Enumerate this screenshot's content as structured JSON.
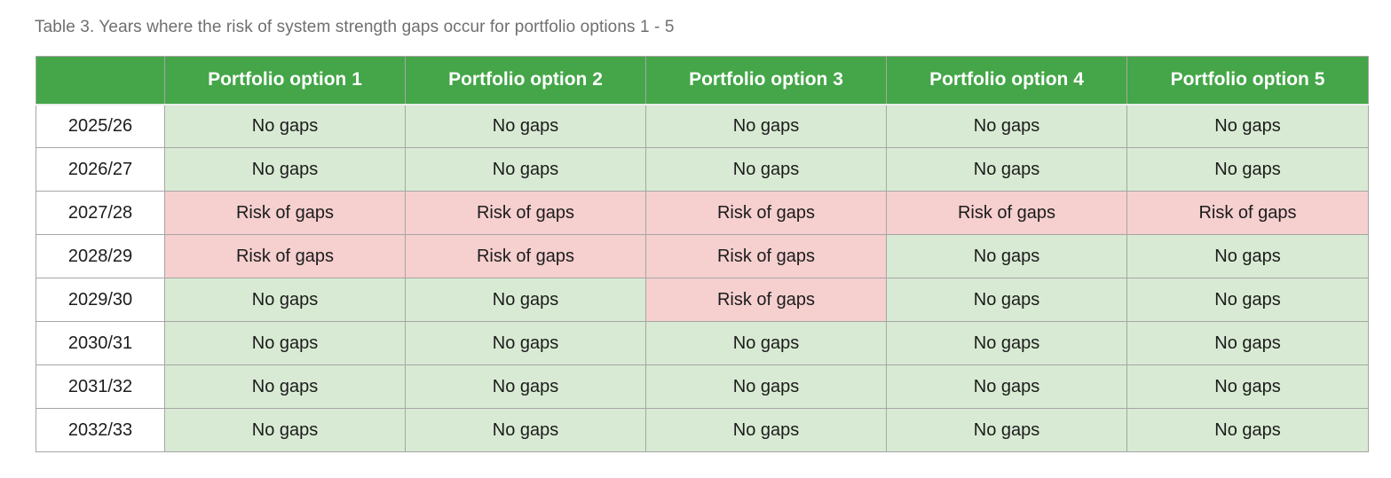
{
  "caption": "Table 3. Years where the risk of system strength gaps occur for portfolio options 1 - 5",
  "table": {
    "header": [
      "",
      "Portfolio option 1",
      "Portfolio option 2",
      "Portfolio option 3",
      "Portfolio option 4",
      "Portfolio option 5"
    ],
    "rows": [
      {
        "year": "2025/26",
        "cells": [
          "No gaps",
          "No gaps",
          "No gaps",
          "No gaps",
          "No gaps"
        ]
      },
      {
        "year": "2026/27",
        "cells": [
          "No gaps",
          "No gaps",
          "No gaps",
          "No gaps",
          "No gaps"
        ]
      },
      {
        "year": "2027/28",
        "cells": [
          "Risk of gaps",
          "Risk of gaps",
          "Risk of gaps",
          "Risk of gaps",
          "Risk of gaps"
        ]
      },
      {
        "year": "2028/29",
        "cells": [
          "Risk of gaps",
          "Risk of gaps",
          "Risk of gaps",
          "No gaps",
          "No gaps"
        ]
      },
      {
        "year": "2029/30",
        "cells": [
          "No gaps",
          "No gaps",
          "Risk of gaps",
          "No gaps",
          "No gaps"
        ]
      },
      {
        "year": "2030/31",
        "cells": [
          "No gaps",
          "No gaps",
          "No gaps",
          "No gaps",
          "No gaps"
        ]
      },
      {
        "year": "2031/32",
        "cells": [
          "No gaps",
          "No gaps",
          "No gaps",
          "No gaps",
          "No gaps"
        ]
      },
      {
        "year": "2032/33",
        "cells": [
          "No gaps",
          "No gaps",
          "No gaps",
          "No gaps",
          "No gaps"
        ]
      }
    ],
    "cell_states": {
      "no_gaps_label": "No gaps",
      "risk_label": "Risk of gaps"
    }
  },
  "colors": {
    "header_bg": "#44a648",
    "header_text": "#ffffff",
    "no_gaps_bg": "#d8ead3",
    "risk_bg": "#f6cfcf",
    "cell_text": "#1c1c1c",
    "caption_text": "#6f6f6f",
    "grid_border": "#a6a6a6"
  }
}
